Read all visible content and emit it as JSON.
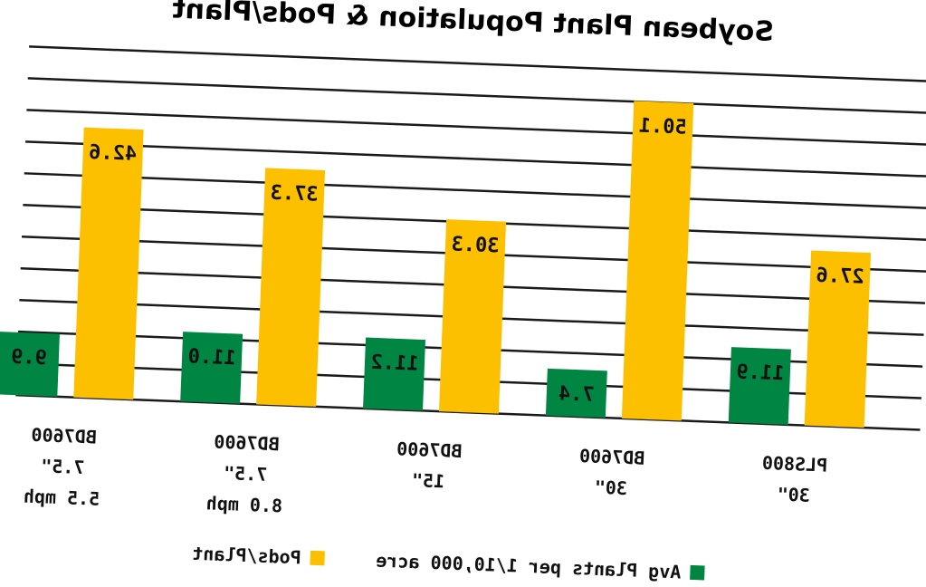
{
  "chart_data": {
    "type": "bar",
    "title": "Soybean Plant Population & Pods/Plant",
    "categories": [
      [
        "PLS800",
        "30\""
      ],
      [
        "BD7600",
        "30\""
      ],
      [
        "BD7600",
        "15\""
      ],
      [
        "BD7600",
        "7.5\"",
        "8.0 mph"
      ],
      [
        "BD7600",
        "7.5\"",
        "5.5 mph"
      ]
    ],
    "series": [
      {
        "name": "Pods/Plant",
        "color": "#FDC000",
        "values": [
          27.6,
          50.1,
          30.3,
          37.3,
          42.6
        ],
        "labels": [
          "27.6",
          "50.1",
          "30.3",
          "37.3",
          "42.6"
        ]
      },
      {
        "name": "Avg Plants per 1/10,000 acre",
        "color": "#008542",
        "values": [
          11.9,
          7.4,
          11.2,
          11.0,
          9.9
        ],
        "labels": [
          "11.9",
          "7.4",
          "11.2",
          "11.0",
          "9.9"
        ]
      }
    ],
    "ylim": [
      0,
      55
    ],
    "grid": true,
    "gridline_step": 5,
    "legend_position": "bottom",
    "xlabel": "",
    "ylabel": ""
  }
}
